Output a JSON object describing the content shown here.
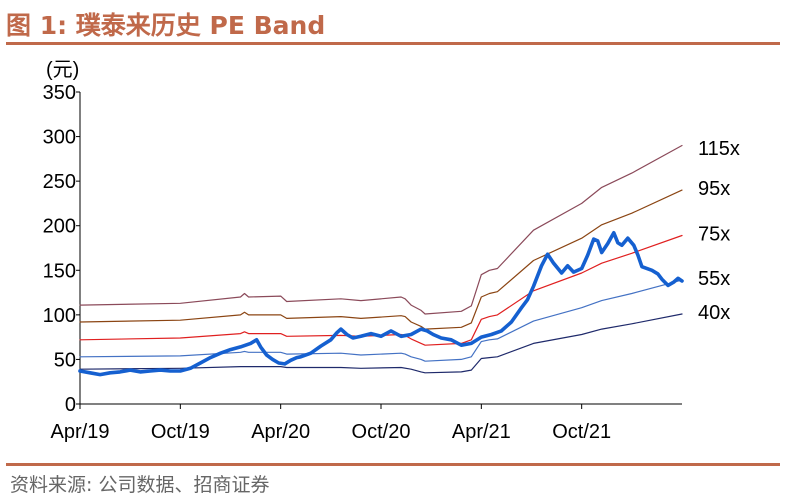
{
  "figure": {
    "title": "图 1:  璞泰来历史 PE Band",
    "source": "资料来源:  公司数据、招商证券"
  },
  "chart_data": {
    "type": "line",
    "title": "璞泰来历史 PE Band",
    "unit_label": "(元)",
    "ylim": [
      0,
      350
    ],
    "yticks": [
      0,
      50,
      100,
      150,
      200,
      250,
      300,
      350
    ],
    "xlim": [
      0,
      30
    ],
    "xticks": [
      {
        "label": "Apr/19",
        "x": 0
      },
      {
        "label": "Oct/19",
        "x": 5
      },
      {
        "label": "Apr/20",
        "x": 10
      },
      {
        "label": "Oct/20",
        "x": 15
      },
      {
        "label": "Apr/21",
        "x": 20
      },
      {
        "label": "Oct/21",
        "x": 25
      }
    ],
    "grid": false,
    "x_note": "x values are months since Apr/19",
    "series": [
      {
        "name": "115x",
        "color": "#8b4a5a",
        "width": 1.2,
        "points": [
          [
            0,
            111
          ],
          [
            5,
            113
          ],
          [
            8,
            120
          ],
          [
            8.2,
            124
          ],
          [
            8.4,
            120
          ],
          [
            10,
            121
          ],
          [
            10.3,
            115
          ],
          [
            13,
            118
          ],
          [
            14,
            116
          ],
          [
            16,
            120
          ],
          [
            16.2,
            118
          ],
          [
            16.5,
            111
          ],
          [
            17,
            105
          ],
          [
            17.2,
            101
          ],
          [
            19,
            104
          ],
          [
            19.5,
            110
          ],
          [
            20,
            145
          ],
          [
            20.4,
            150
          ],
          [
            20.8,
            152
          ],
          [
            22.6,
            195
          ],
          [
            25,
            225
          ],
          [
            26,
            243
          ],
          [
            27.5,
            259
          ],
          [
            30,
            290
          ]
        ]
      },
      {
        "name": "95x",
        "color": "#8b4513",
        "width": 1.2,
        "points": [
          [
            0,
            92
          ],
          [
            5,
            94
          ],
          [
            8,
            100
          ],
          [
            8.2,
            103
          ],
          [
            8.4,
            100
          ],
          [
            10,
            100
          ],
          [
            10.3,
            96
          ],
          [
            13,
            98
          ],
          [
            14,
            96
          ],
          [
            16,
            99
          ],
          [
            16.2,
            98
          ],
          [
            16.5,
            92
          ],
          [
            17,
            87
          ],
          [
            17.2,
            84
          ],
          [
            19,
            86
          ],
          [
            19.5,
            91
          ],
          [
            20,
            120
          ],
          [
            20.4,
            124
          ],
          [
            20.8,
            126
          ],
          [
            22.6,
            161
          ],
          [
            25,
            186
          ],
          [
            26,
            201
          ],
          [
            27.5,
            214
          ],
          [
            30,
            240
          ]
        ]
      },
      {
        "name": "75x",
        "color": "#e02020",
        "width": 1.2,
        "points": [
          [
            0,
            72
          ],
          [
            5,
            74
          ],
          [
            8,
            79
          ],
          [
            8.2,
            81
          ],
          [
            8.4,
            79
          ],
          [
            10,
            79
          ],
          [
            10.3,
            76
          ],
          [
            13,
            77
          ],
          [
            14,
            76
          ],
          [
            16,
            78
          ],
          [
            16.2,
            77
          ],
          [
            16.5,
            73
          ],
          [
            17,
            68
          ],
          [
            17.2,
            66
          ],
          [
            19,
            68
          ],
          [
            19.5,
            72
          ],
          [
            20,
            95
          ],
          [
            20.4,
            98
          ],
          [
            20.8,
            100
          ],
          [
            22.6,
            127
          ],
          [
            25,
            147
          ],
          [
            26,
            158
          ],
          [
            27.5,
            169
          ],
          [
            30,
            189
          ]
        ]
      },
      {
        "name": "55x",
        "color": "#4472c4",
        "width": 1.2,
        "points": [
          [
            0,
            53
          ],
          [
            5,
            54
          ],
          [
            8,
            58
          ],
          [
            8.2,
            59
          ],
          [
            8.4,
            58
          ],
          [
            10,
            58
          ],
          [
            10.3,
            56
          ],
          [
            13,
            57
          ],
          [
            14,
            55
          ],
          [
            16,
            57
          ],
          [
            16.2,
            56
          ],
          [
            16.5,
            53
          ],
          [
            17,
            50
          ],
          [
            17.2,
            48
          ],
          [
            19,
            50
          ],
          [
            19.5,
            53
          ],
          [
            20,
            70
          ],
          [
            20.4,
            72
          ],
          [
            20.8,
            73
          ],
          [
            22.6,
            93
          ],
          [
            25,
            108
          ],
          [
            26,
            116
          ],
          [
            27.5,
            124
          ],
          [
            30,
            139
          ]
        ]
      },
      {
        "name": "40x",
        "color": "#1f2a6b",
        "width": 1.2,
        "points": [
          [
            0,
            39
          ],
          [
            5,
            40
          ],
          [
            8,
            42
          ],
          [
            8.4,
            42
          ],
          [
            10,
            42
          ],
          [
            10.3,
            41
          ],
          [
            13,
            41
          ],
          [
            14,
            40
          ],
          [
            16,
            41
          ],
          [
            16.5,
            39
          ],
          [
            17,
            36
          ],
          [
            17.2,
            35
          ],
          [
            19,
            36
          ],
          [
            19.5,
            38
          ],
          [
            20,
            51
          ],
          [
            20.4,
            52
          ],
          [
            20.8,
            53
          ],
          [
            22.6,
            68
          ],
          [
            25,
            78
          ],
          [
            26,
            84
          ],
          [
            27.5,
            90
          ],
          [
            30,
            101
          ]
        ]
      },
      {
        "name": "",
        "color": "#1560d0",
        "width": 3.6,
        "points": [
          [
            0,
            37
          ],
          [
            0.5,
            35
          ],
          [
            1,
            33
          ],
          [
            1.5,
            35
          ],
          [
            2,
            36
          ],
          [
            2.5,
            38
          ],
          [
            3,
            36
          ],
          [
            3.5,
            37
          ],
          [
            4,
            38
          ],
          [
            4.5,
            37
          ],
          [
            5,
            37
          ],
          [
            5.5,
            40
          ],
          [
            6,
            46
          ],
          [
            6.5,
            52
          ],
          [
            7,
            57
          ],
          [
            7.5,
            61
          ],
          [
            8,
            64
          ],
          [
            8.5,
            68
          ],
          [
            8.8,
            72
          ],
          [
            9,
            64
          ],
          [
            9.3,
            55
          ],
          [
            9.6,
            50
          ],
          [
            9.9,
            46
          ],
          [
            10.2,
            45
          ],
          [
            10.5,
            49
          ],
          [
            10.8,
            52
          ],
          [
            11,
            53
          ],
          [
            11.5,
            57
          ],
          [
            12,
            65
          ],
          [
            12.5,
            72
          ],
          [
            12.8,
            80
          ],
          [
            13,
            84
          ],
          [
            13.3,
            78
          ],
          [
            13.6,
            74
          ],
          [
            14,
            76
          ],
          [
            14.5,
            79
          ],
          [
            15,
            76
          ],
          [
            15.5,
            82
          ],
          [
            16,
            76
          ],
          [
            16.5,
            78
          ],
          [
            17,
            84
          ],
          [
            17.3,
            82
          ],
          [
            17.6,
            78
          ],
          [
            18,
            74
          ],
          [
            18.5,
            72
          ],
          [
            19,
            66
          ],
          [
            19.5,
            68
          ],
          [
            20,
            75
          ],
          [
            20.5,
            78
          ],
          [
            21,
            82
          ],
          [
            21.5,
            92
          ],
          [
            22,
            108
          ],
          [
            22.3,
            117
          ],
          [
            22.6,
            132
          ],
          [
            23,
            155
          ],
          [
            23.3,
            168
          ],
          [
            23.6,
            158
          ],
          [
            24,
            147
          ],
          [
            24.3,
            155
          ],
          [
            24.6,
            148
          ],
          [
            25,
            152
          ],
          [
            25.3,
            167
          ],
          [
            25.6,
            185
          ],
          [
            25.8,
            183
          ],
          [
            26,
            170
          ],
          [
            26.3,
            180
          ],
          [
            26.6,
            192
          ],
          [
            26.8,
            181
          ],
          [
            27,
            178
          ],
          [
            27.3,
            186
          ],
          [
            27.6,
            178
          ],
          [
            27.8,
            167
          ],
          [
            28,
            154
          ],
          [
            28.5,
            150
          ],
          [
            28.8,
            146
          ],
          [
            29,
            140
          ],
          [
            29.3,
            133
          ],
          [
            29.6,
            137
          ],
          [
            29.8,
            141
          ],
          [
            30,
            138
          ]
        ]
      }
    ]
  }
}
